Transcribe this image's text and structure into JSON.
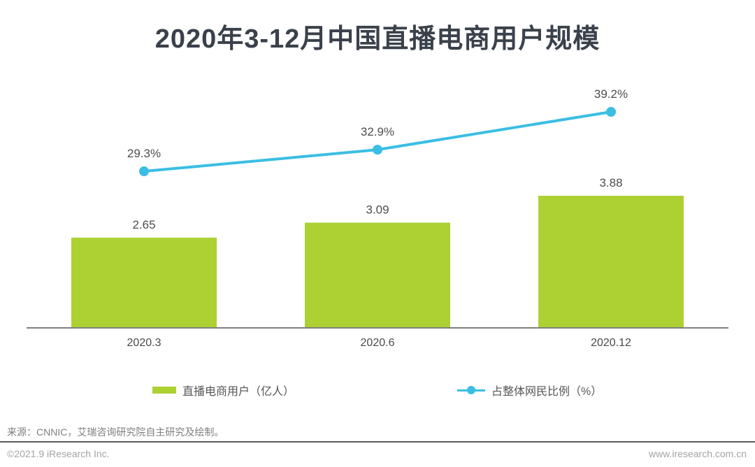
{
  "header": {
    "title": "2020年3-12月中国直播电商用户规模"
  },
  "chart_data": {
    "type": "bar+line",
    "categories": [
      "2020.3",
      "2020.6",
      "2020.12"
    ],
    "series": [
      {
        "name": "直播电商用户（亿人）",
        "type": "bar",
        "values": [
          2.65,
          3.09,
          3.88
        ],
        "labels": [
          "2.65",
          "3.09",
          "3.88"
        ],
        "color": "#ADD033"
      },
      {
        "name": "占整体网民比例（%）",
        "type": "line",
        "values": [
          29.3,
          32.9,
          39.2
        ],
        "labels": [
          "29.3%",
          "32.9%",
          "39.2%"
        ],
        "color": "#3BBEE3"
      }
    ],
    "title": "2020年3-12月中国直播电商用户规模",
    "xlabel": "",
    "ylabel": "",
    "bar_ylim": [
      0,
      4.4
    ],
    "line_ylim": [
      26,
      45
    ],
    "grid": false,
    "legend_position": "bottom",
    "axis_color": "#7F7F7F",
    "label_color": "#4D4D4D",
    "tick_color": "#4A4A4A"
  },
  "source_note": "来源：CNNIC，艾瑞咨询研究院自主研究及绘制。",
  "footer": {
    "copyright": "©2021.9 iResearch Inc.",
    "website": "www.iresearch.com.cn"
  }
}
